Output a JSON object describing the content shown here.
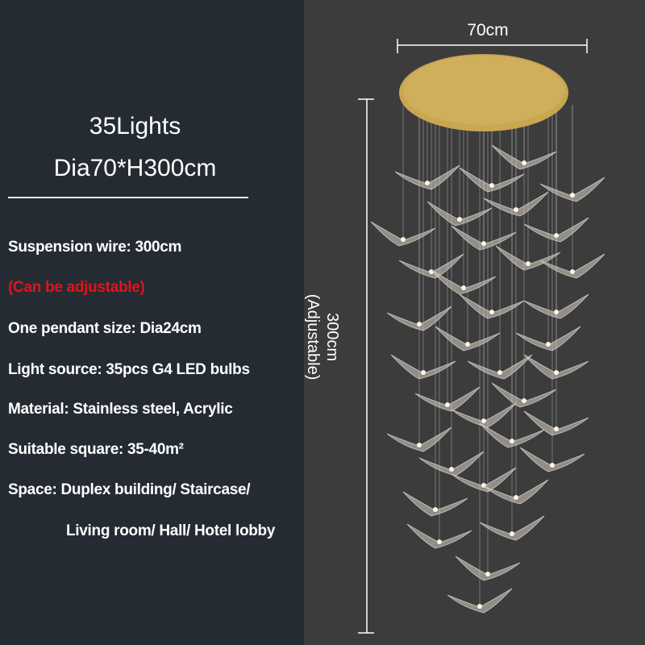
{
  "heading": {
    "line1": "35Lights",
    "line2": "Dia70*H300cm"
  },
  "specs": [
    "Suspension wire: 300cm",
    "(Can be adjustable)",
    "One pendant size: Dia24cm",
    "Light source: 35pcs G4 LED bulbs",
    "Material: Stainless steel, Acrylic",
    "Suitable square: 35-40m²",
    "Space: Duplex building/ Staircase/",
    "Living room/ Hall/ Hotel lobby"
  ],
  "dimensions": {
    "width": "70cm",
    "height": "300cm",
    "height_note": "(Adjustable)"
  },
  "colors": {
    "left_bg": "#252b33",
    "right_bg": "#3c3c3d",
    "accent_red": "#e0141a",
    "canopy_gold": "#c9a650"
  }
}
